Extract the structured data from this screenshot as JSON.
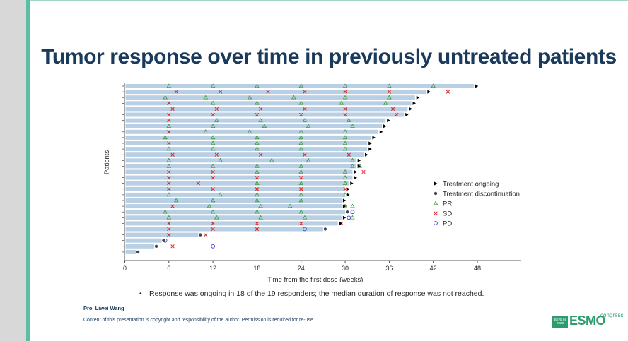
{
  "title": "Tumor response over time in previously untreated patients",
  "chart_data": {
    "type": "swimmer",
    "xlabel": "Time from the first dose (weeks)",
    "ylabel": "Patients",
    "xlim": [
      0,
      54
    ],
    "xticks": [
      0,
      6,
      12,
      18,
      24,
      30,
      36,
      42,
      48
    ],
    "legend": [
      {
        "key": "ongoing",
        "label": "Treatment ongoing",
        "symbol": "triangle-right",
        "color": "#000000"
      },
      {
        "key": "discontinuation",
        "label": "Treatment discontinuation",
        "symbol": "dot",
        "color": "#444444"
      },
      {
        "key": "PR",
        "label": "PR",
        "symbol": "triangle",
        "color": "#3a9a3a"
      },
      {
        "key": "SD",
        "label": "SD",
        "symbol": "cross",
        "color": "#dd2222"
      },
      {
        "key": "PD",
        "label": "PD",
        "symbol": "circle",
        "color": "#3a3ad0"
      }
    ],
    "patients": [
      {
        "duration": 47.5,
        "end": "ongoing",
        "events": [
          [
            6,
            "PR"
          ],
          [
            12,
            "PR"
          ],
          [
            18,
            "PR"
          ],
          [
            24,
            "PR"
          ],
          [
            30,
            "PR"
          ],
          [
            36,
            "PR"
          ],
          [
            42,
            "PR"
          ]
        ]
      },
      {
        "duration": 41.0,
        "end": "ongoing",
        "events": [
          [
            7,
            "SD"
          ],
          [
            13,
            "SD"
          ],
          [
            19.5,
            "SD"
          ],
          [
            24.5,
            "SD"
          ],
          [
            30,
            "SD"
          ],
          [
            36,
            "SD"
          ],
          [
            44,
            "SD"
          ]
        ]
      },
      {
        "duration": 39.5,
        "end": "ongoing",
        "events": [
          [
            5.5,
            "PR"
          ],
          [
            11,
            "PR"
          ],
          [
            17,
            "PR"
          ],
          [
            23,
            "PR"
          ],
          [
            30,
            "PR"
          ],
          [
            36,
            "PR"
          ]
        ]
      },
      {
        "duration": 39.0,
        "end": "ongoing",
        "events": [
          [
            6,
            "SD"
          ],
          [
            12,
            "PR"
          ],
          [
            18,
            "PR"
          ],
          [
            24,
            "PR"
          ],
          [
            29.5,
            "PR"
          ],
          [
            35.5,
            "PR"
          ]
        ]
      },
      {
        "duration": 38.5,
        "end": "ongoing",
        "events": [
          [
            6.5,
            "SD"
          ],
          [
            12.5,
            "SD"
          ],
          [
            18.5,
            "SD"
          ],
          [
            24.5,
            "SD"
          ],
          [
            30,
            "SD"
          ],
          [
            36.5,
            "SD"
          ]
        ]
      },
      {
        "duration": 38.0,
        "end": "ongoing",
        "events": [
          [
            6,
            "SD"
          ],
          [
            12,
            "SD"
          ],
          [
            18,
            "SD"
          ],
          [
            24,
            "SD"
          ],
          [
            30,
            "SD"
          ],
          [
            37,
            "SD"
          ]
        ]
      },
      {
        "duration": 35.5,
        "end": "ongoing",
        "events": [
          [
            6,
            "SD"
          ],
          [
            12.5,
            "PR"
          ],
          [
            18.5,
            "PR"
          ],
          [
            24.5,
            "PR"
          ],
          [
            30.5,
            "PR"
          ]
        ]
      },
      {
        "duration": 35.0,
        "end": "ongoing",
        "events": [
          [
            6,
            "PR"
          ],
          [
            12,
            "PR"
          ],
          [
            19,
            "PR"
          ],
          [
            25,
            "PR"
          ],
          [
            31,
            "PR"
          ]
        ]
      },
      {
        "duration": 34.5,
        "end": "ongoing",
        "events": [
          [
            6,
            "SD"
          ],
          [
            11,
            "PR"
          ],
          [
            17,
            "PR"
          ],
          [
            24,
            "PR"
          ],
          [
            30,
            "PR"
          ]
        ]
      },
      {
        "duration": 33.5,
        "end": "ongoing",
        "events": [
          [
            5.5,
            "PR"
          ],
          [
            12,
            "PR"
          ],
          [
            18,
            "PR"
          ],
          [
            24,
            "PR"
          ],
          [
            30,
            "PR"
          ]
        ]
      },
      {
        "duration": 33.0,
        "end": "ongoing",
        "events": [
          [
            6,
            "SD"
          ],
          [
            12,
            "PR"
          ],
          [
            18,
            "PR"
          ],
          [
            24,
            "PR"
          ],
          [
            30,
            "PR"
          ]
        ]
      },
      {
        "duration": 33.0,
        "end": "ongoing",
        "events": [
          [
            6,
            "PR"
          ],
          [
            12,
            "PR"
          ],
          [
            18,
            "PR"
          ],
          [
            24,
            "PR"
          ],
          [
            30,
            "PR"
          ]
        ]
      },
      {
        "duration": 32.5,
        "end": "ongoing",
        "events": [
          [
            6.5,
            "SD"
          ],
          [
            12.5,
            "SD"
          ],
          [
            18.5,
            "SD"
          ],
          [
            24.5,
            "SD"
          ],
          [
            30.5,
            "SD"
          ]
        ]
      },
      {
        "duration": 31.5,
        "end": "ongoing",
        "events": [
          [
            6,
            "PR"
          ],
          [
            13,
            "PR"
          ],
          [
            20,
            "PR"
          ],
          [
            25,
            "PR"
          ],
          [
            31,
            "PR"
          ]
        ]
      },
      {
        "duration": 31.5,
        "end": "ongoing",
        "events": [
          [
            6,
            "PR"
          ],
          [
            12,
            "PR"
          ],
          [
            18,
            "PR"
          ],
          [
            24,
            "PR"
          ],
          [
            31,
            "PR"
          ],
          [
            32,
            "PR"
          ]
        ]
      },
      {
        "duration": 31.0,
        "end": "ongoing",
        "events": [
          [
            6,
            "SD"
          ],
          [
            12,
            "SD"
          ],
          [
            18,
            "PR"
          ],
          [
            24,
            "PR"
          ],
          [
            30,
            "PR"
          ],
          [
            32.5,
            "SD"
          ]
        ]
      },
      {
        "duration": 31.0,
        "end": "ongoing",
        "events": [
          [
            6,
            "SD"
          ],
          [
            12,
            "SD"
          ],
          [
            18,
            "SD"
          ],
          [
            24,
            "SD"
          ],
          [
            30,
            "PR"
          ]
        ]
      },
      {
        "duration": 30.5,
        "end": "ongoing",
        "events": [
          [
            6,
            "SD"
          ],
          [
            10,
            "SD"
          ],
          [
            18,
            "PR"
          ],
          [
            24,
            "PR"
          ],
          [
            30,
            "PR"
          ]
        ]
      },
      {
        "duration": 30.0,
        "end": "ongoing",
        "events": [
          [
            6,
            "SD"
          ],
          [
            12,
            "SD"
          ],
          [
            18,
            "SD"
          ],
          [
            24,
            "SD"
          ],
          [
            30,
            "SD"
          ]
        ]
      },
      {
        "duration": 30.0,
        "end": "ongoing",
        "events": [
          [
            6,
            "PR"
          ],
          [
            13,
            "PR"
          ],
          [
            18,
            "PR"
          ],
          [
            24,
            "PR"
          ],
          [
            30,
            "PR"
          ]
        ]
      },
      {
        "duration": 29.5,
        "end": "ongoing",
        "events": [
          [
            7,
            "PR"
          ],
          [
            12,
            "PR"
          ],
          [
            18,
            "PR"
          ],
          [
            24,
            "PR"
          ]
        ]
      },
      {
        "duration": 29.5,
        "end": "ongoing",
        "events": [
          [
            6.5,
            "SD"
          ],
          [
            11.5,
            "PR"
          ],
          [
            18.5,
            "PR"
          ],
          [
            22.5,
            "PR"
          ],
          [
            30,
            "PR"
          ],
          [
            31,
            "PR"
          ]
        ]
      },
      {
        "duration": 30.0,
        "end": "discontinuation",
        "events": [
          [
            5.5,
            "PR"
          ],
          [
            12,
            "PR"
          ],
          [
            18,
            "PR"
          ],
          [
            24,
            "PR"
          ],
          [
            31,
            "PD"
          ]
        ]
      },
      {
        "duration": 29.5,
        "end": "ongoing",
        "events": [
          [
            6,
            "PR"
          ],
          [
            12.5,
            "PR"
          ],
          [
            18.5,
            "PR"
          ],
          [
            24.5,
            "PR"
          ],
          [
            30.5,
            "PD"
          ],
          [
            31,
            "PR"
          ]
        ]
      },
      {
        "duration": 29.0,
        "end": "ongoing",
        "events": [
          [
            6,
            "SD"
          ],
          [
            12,
            "SD"
          ],
          [
            18,
            "SD"
          ],
          [
            24,
            "SD"
          ],
          [
            29.5,
            "SD"
          ]
        ]
      },
      {
        "duration": 27.0,
        "end": "discontinuation",
        "events": [
          [
            6,
            "SD"
          ],
          [
            12,
            "SD"
          ],
          [
            18,
            "SD"
          ],
          [
            24.5,
            "PD"
          ]
        ]
      },
      {
        "duration": 10.0,
        "end": "discontinuation",
        "events": [
          [
            6,
            "SD"
          ],
          [
            11,
            "SD"
          ]
        ]
      },
      {
        "duration": 5.0,
        "end": "discontinuation",
        "events": [
          [
            5.5,
            "PD"
          ]
        ]
      },
      {
        "duration": 4.0,
        "end": "discontinuation",
        "events": [
          [
            6.5,
            "SD"
          ],
          [
            12,
            "PD"
          ]
        ]
      },
      {
        "duration": 1.5,
        "end": "discontinuation",
        "events": []
      }
    ]
  },
  "note": "Response was ongoing in 18 of the 19 responders; the median duration of response was not reached.",
  "author": "Pro. Liwei Wang",
  "copyright": "Content of this presentation is copyright and responsibility of the author. Permission is required for re-use.",
  "logo": {
    "badge": "BERLIN 2023",
    "name": "ESMO",
    "suffix": "congress"
  },
  "colors": {
    "bar": "#b8cfe4",
    "title": "#1a3a5c",
    "accent": "#5bbfa8"
  }
}
